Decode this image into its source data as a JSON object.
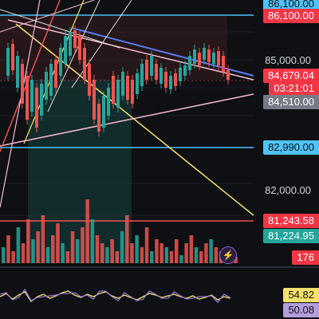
{
  "price_scale": {
    "labels": [
      "85,000.00",
      "82,000.00"
    ]
  },
  "price_tags": {
    "top_cyan": {
      "text": "86,100.00",
      "bg": "#4fc3f7",
      "fg": "#0e1013"
    },
    "top_red": {
      "text": "86,100.00",
      "bg": "#f23645",
      "fg": "#ffffff"
    },
    "last_price": {
      "text": "84,679.04",
      "bg": "#f23645",
      "fg": "#ffffff"
    },
    "countdown": {
      "text": "03:21:01",
      "bg": "#f23645",
      "fg": "#ffffff"
    },
    "trend_grey": {
      "text": "84,510.00",
      "bg": "#787b86",
      "fg": "#ffffff"
    },
    "support_cyan": {
      "text": "82,990.00",
      "bg": "#4fc3f7",
      "fg": "#0e1013"
    },
    "level_red": {
      "text": "81,243.58",
      "bg": "#f23645",
      "fg": "#ffffff"
    },
    "level_green": {
      "text": "81,224.95",
      "bg": "#26a69a",
      "fg": "#ffffff"
    },
    "volume": {
      "text": "176",
      "bg": "#f23645",
      "fg": "#ffffff"
    },
    "osc_yellow": {
      "text": "54.82",
      "bg": "#f5e16b",
      "fg": "#0e1013"
    },
    "osc_purple": {
      "text": "50.08",
      "bg": "#b39ddb",
      "fg": "#0e1013"
    }
  },
  "colors": {
    "up": "#26a69a",
    "down": "#ef5350",
    "cyan": "#4fc3f7",
    "blue": "#5b7cf0",
    "pink": "#f8bbd0",
    "yellow": "#f5e16b",
    "purple": "#9575cd",
    "white_line": "#e0e0e0"
  },
  "toolbar": {
    "bolt_icon": "bolt-icon"
  }
}
